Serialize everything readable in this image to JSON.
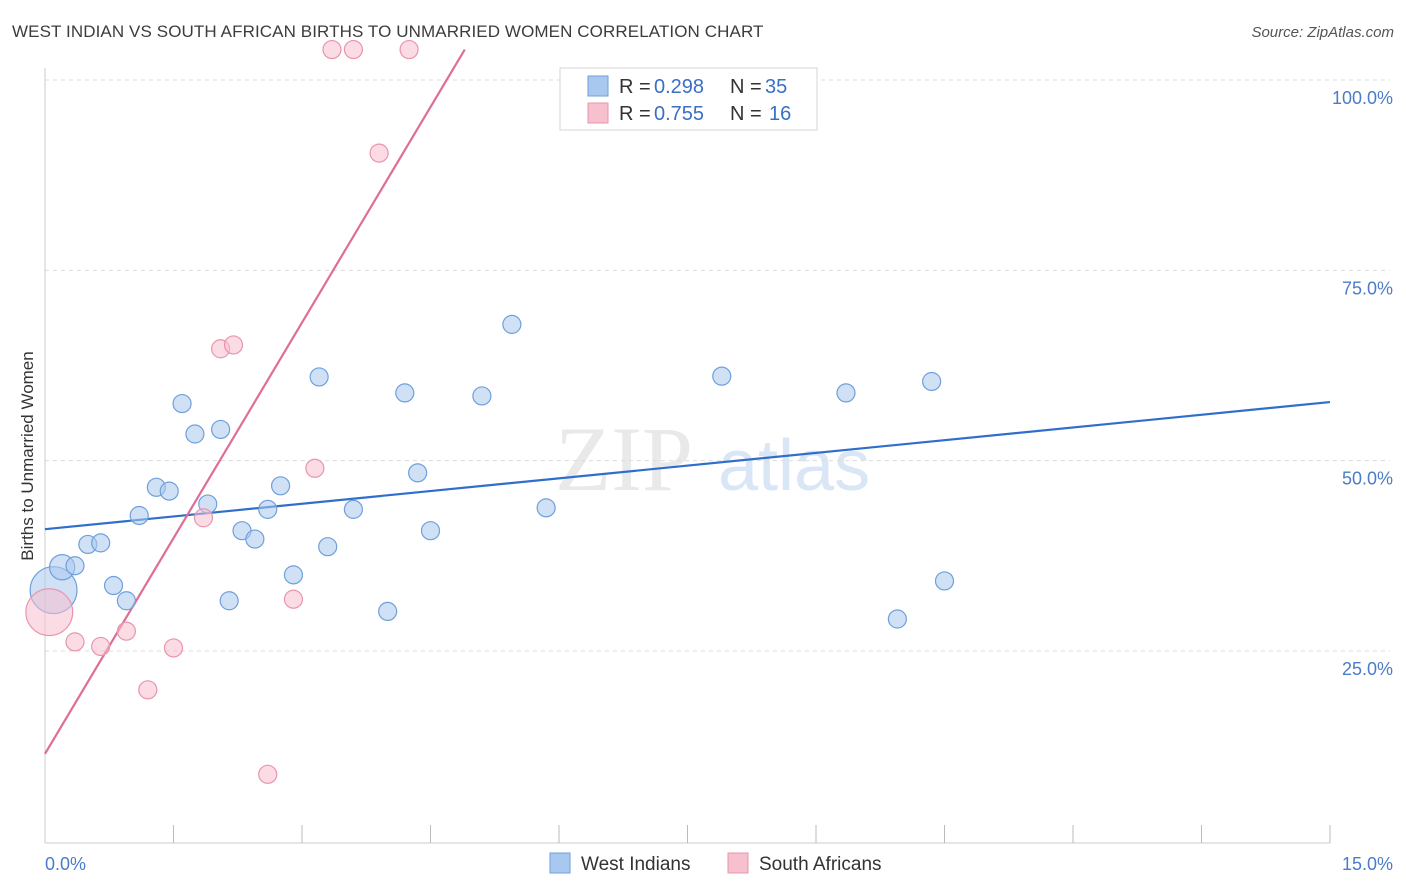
{
  "title": "WEST INDIAN VS SOUTH AFRICAN BIRTHS TO UNMARRIED WOMEN CORRELATION CHART",
  "source": "Source: ZipAtlas.com",
  "watermark": {
    "zip": "ZIP",
    "atlas": "atlas"
  },
  "colors": {
    "blue_fill": "#a9c8ef",
    "blue_stroke": "#6f9fdc",
    "blue_line": "#2f6fcb",
    "pink_fill": "#f7c0cf",
    "pink_stroke": "#e994ad",
    "pink_line": "#e06d96",
    "tick_text": "#4a7cc9",
    "grid": "#dcdcdc"
  },
  "legend": {
    "rows": [
      {
        "r_label": "R =",
        "r_value": "0.298",
        "n_label": "N =",
        "n_value": "35"
      },
      {
        "r_label": "R =",
        "r_value": "0.755",
        "n_label": "N =",
        "n_value": "16"
      }
    ]
  },
  "bottom_legend": [
    "West Indians",
    "South Africans"
  ],
  "chart_data": {
    "type": "scatter",
    "ylabel": "Births to Unmarried Women",
    "xlim": [
      0,
      15
    ],
    "ylim": [
      0,
      105
    ],
    "x_tick_labels": [
      {
        "value": 0,
        "label": "0.0%"
      },
      {
        "value": 15,
        "label": "15.0%"
      }
    ],
    "x_minor_ticks": [
      1.5,
      3.0,
      4.5,
      6.0,
      7.5,
      9.0,
      10.5,
      12.0,
      13.5,
      15.0
    ],
    "y_ticks": [
      {
        "value": 25,
        "label": "25.0%"
      },
      {
        "value": 50,
        "label": "50.0%"
      },
      {
        "value": 75,
        "label": "75.0%"
      },
      {
        "value": 100,
        "label": "100.0%"
      }
    ],
    "grid": true,
    "legend_position": "top-center",
    "series": [
      {
        "name": "West Indians",
        "points": [
          [
            0.1,
            33.0,
            2.6
          ],
          [
            0.2,
            36.0,
            1.4
          ],
          [
            0.35,
            36.2,
            1.0
          ],
          [
            0.5,
            39.0,
            1.0
          ],
          [
            0.65,
            39.2,
            1.0
          ],
          [
            0.8,
            33.6,
            1.0
          ],
          [
            0.95,
            31.6,
            1.0
          ],
          [
            1.1,
            42.8,
            1.0
          ],
          [
            1.3,
            46.5,
            1.0
          ],
          [
            1.45,
            46.0,
            1.0
          ],
          [
            1.6,
            57.5,
            1.0
          ],
          [
            1.75,
            53.5,
            1.0
          ],
          [
            1.9,
            44.3,
            1.0
          ],
          [
            2.05,
            54.1,
            1.0
          ],
          [
            2.15,
            31.6,
            1.0
          ],
          [
            2.3,
            40.8,
            1.0
          ],
          [
            2.45,
            39.7,
            1.0
          ],
          [
            2.6,
            43.6,
            1.0
          ],
          [
            2.75,
            46.7,
            1.0
          ],
          [
            2.9,
            35.0,
            1.0
          ],
          [
            3.2,
            61.0,
            1.0
          ],
          [
            3.3,
            38.7,
            1.0
          ],
          [
            3.6,
            43.6,
            1.0
          ],
          [
            4.0,
            30.2,
            1.0
          ],
          [
            4.2,
            58.9,
            1.0
          ],
          [
            4.35,
            48.4,
            1.0
          ],
          [
            4.5,
            40.8,
            1.0
          ],
          [
            5.1,
            58.5,
            1.0
          ],
          [
            5.85,
            43.8,
            1.0
          ],
          [
            5.45,
            67.9,
            1.0
          ],
          [
            7.9,
            61.1,
            1.0
          ],
          [
            9.35,
            58.9,
            1.0
          ],
          [
            9.95,
            29.2,
            1.0
          ],
          [
            10.35,
            60.4,
            1.0
          ],
          [
            10.5,
            34.2,
            1.0
          ]
        ],
        "trend": [
          [
            0,
            41.0
          ],
          [
            15,
            57.7
          ]
        ]
      },
      {
        "name": "South Africans",
        "points": [
          [
            0.05,
            30.1,
            2.6
          ],
          [
            0.35,
            26.2,
            1.0
          ],
          [
            0.65,
            25.6,
            1.0
          ],
          [
            0.95,
            27.6,
            1.0
          ],
          [
            1.2,
            19.9,
            1.0
          ],
          [
            1.5,
            25.4,
            1.0
          ],
          [
            1.85,
            42.5,
            1.0
          ],
          [
            2.05,
            64.7,
            1.0
          ],
          [
            2.2,
            65.2,
            1.0
          ],
          [
            2.6,
            8.8,
            1.0
          ],
          [
            2.9,
            31.8,
            1.0
          ],
          [
            3.15,
            49.0,
            1.0
          ],
          [
            3.35,
            104.0,
            1.0
          ],
          [
            3.6,
            104.0,
            1.0
          ],
          [
            3.9,
            90.4,
            1.0
          ],
          [
            4.25,
            104.0,
            1.0
          ]
        ],
        "trend": [
          [
            0,
            11.5
          ],
          [
            4.9,
            104.0
          ]
        ]
      }
    ]
  }
}
